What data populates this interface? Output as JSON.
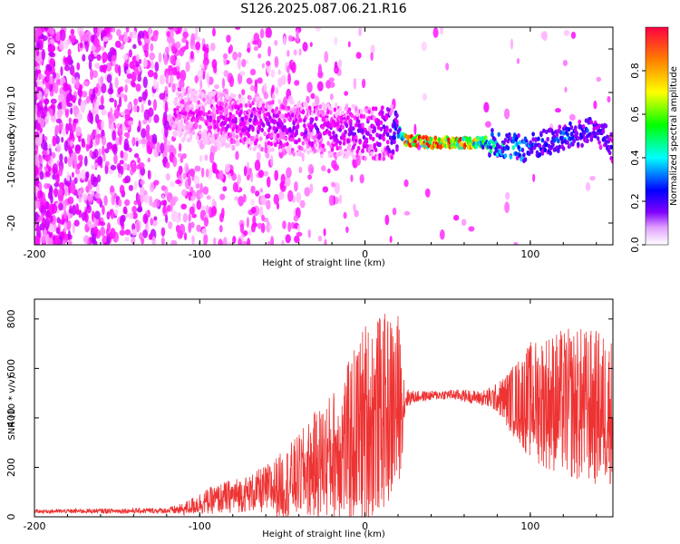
{
  "title": "S126.2025.087.06.21.R16",
  "chart_data": [
    {
      "type": "heatmap",
      "xlabel": "Height of straight line (km)",
      "ylabel": "Frequency (Hz)",
      "xlim": [
        -200,
        150
      ],
      "ylim": [
        -25,
        25
      ],
      "xticks": [
        "-200",
        "-100",
        "0",
        "100"
      ],
      "yticks": [
        "-20",
        "-10",
        "0",
        "10",
        "20"
      ],
      "colorbar": {
        "label": "Normalized spectral amplitude",
        "range": [
          0,
          1
        ],
        "ticks": [
          "0.0",
          "0.2",
          "0.4",
          "0.6",
          "0.8"
        ],
        "colormap": [
          "#ffffff",
          "#ff00ff",
          "#8000ff",
          "#0000ff",
          "#00ffff",
          "#00ff00",
          "#ffff00",
          "#ff8000",
          "#ff0000"
        ]
      },
      "ridge": {
        "x": [
          -110,
          -90,
          -70,
          -50,
          -30,
          -10,
          10,
          20,
          25,
          40,
          60,
          75,
          85,
          95,
          105,
          115,
          125,
          135,
          145,
          150
        ],
        "freq": [
          5,
          4,
          3,
          2,
          1.5,
          1,
          0.5,
          1,
          -1,
          -1.5,
          -1.5,
          -1.5,
          -2,
          -3,
          -2,
          -1,
          0,
          1,
          0,
          -3
        ],
        "amplitude": [
          0.15,
          0.2,
          0.25,
          0.25,
          0.25,
          0.25,
          0.3,
          0.45,
          0.95,
          0.97,
          0.97,
          0.6,
          0.5,
          0.5,
          0.4,
          0.45,
          0.45,
          0.4,
          0.35,
          0.3
        ]
      }
    },
    {
      "type": "line",
      "xlabel": "Height of straight line (km)",
      "ylabel": "SNR (10 * v/v)",
      "xlim": [
        -200,
        150
      ],
      "ylim": [
        0,
        880
      ],
      "xticks": [
        "-200",
        "-100",
        "0",
        "100"
      ],
      "yticks": [
        "0",
        "200",
        "400",
        "600",
        "800"
      ],
      "color": "#ee3333",
      "envelope": {
        "x": [
          -200,
          -120,
          -110,
          -100,
          -90,
          -80,
          -70,
          -60,
          -50,
          -40,
          -30,
          -20,
          -10,
          0,
          10,
          20,
          25,
          30,
          40,
          50,
          60,
          70,
          80,
          90,
          100,
          110,
          120,
          130,
          140,
          150
        ],
        "mean": [
          22,
          25,
          30,
          55,
          70,
          85,
          95,
          110,
          125,
          165,
          210,
          250,
          300,
          380,
          420,
          450,
          480,
          485,
          490,
          495,
          490,
          480,
          480,
          470,
          470,
          470,
          460,
          450,
          440,
          430
        ],
        "spread": [
          8,
          12,
          25,
          45,
          60,
          70,
          75,
          100,
          140,
          170,
          220,
          260,
          330,
          420,
          400,
          380,
          40,
          25,
          20,
          20,
          25,
          30,
          60,
          150,
          240,
          280,
          300,
          320,
          320,
          300
        ]
      }
    }
  ]
}
